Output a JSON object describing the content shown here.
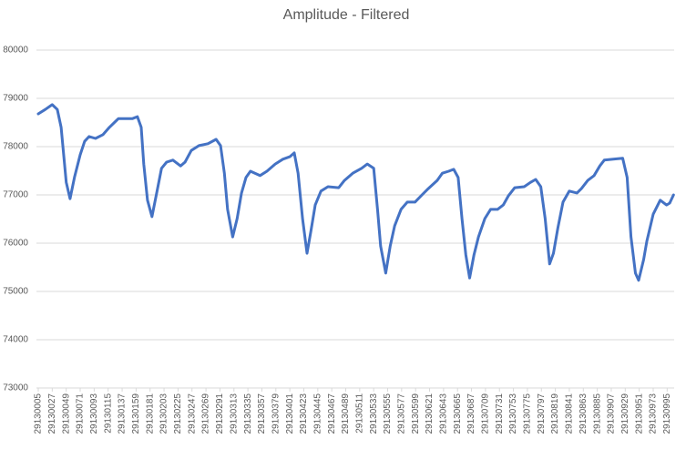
{
  "chart_data": {
    "type": "line",
    "title": "Amplitude - Filtered",
    "x": [
      29130005,
      29130016,
      29130027,
      29130035,
      29130041,
      29130045,
      29130049,
      29130055,
      29130062,
      29130071,
      29130078,
      29130085,
      29130095,
      29130107,
      29130117,
      29130131,
      29130141,
      29130153,
      29130161,
      29130167,
      29130171,
      29130177,
      29130184,
      29130192,
      29130199,
      29130207,
      29130217,
      29130229,
      29130236,
      29130246,
      29130258,
      29130272,
      29130285,
      29130292,
      29130298,
      29130303,
      29130311,
      29130318,
      29130325,
      29130332,
      29130339,
      29130354,
      29130365,
      29130378,
      29130390,
      29130401,
      29130408,
      29130414,
      29130421,
      29130428,
      29130434,
      29130441,
      29130450,
      29130461,
      29130478,
      29130487,
      29130500,
      29130514,
      29130523,
      29130533,
      29130539,
      29130544,
      29130552,
      29130559,
      29130566,
      29130576,
      29130586,
      29130598,
      29130609,
      29130619,
      29130633,
      29130641,
      29130651,
      29130659,
      29130666,
      29130672,
      29130678,
      29130684,
      29130691,
      29130698,
      29130708,
      29130717,
      29130728,
      29130737,
      29130745,
      29130755,
      29130770,
      29130780,
      29130788,
      29130796,
      29130803,
      29130810,
      29130816,
      29130823,
      29130831,
      29130841,
      29130853,
      29130860,
      29130870,
      29130880,
      29130889,
      29130896,
      29130910,
      29130925,
      29130932,
      29130938,
      29130945,
      29130950,
      29130958,
      29130963,
      29130973,
      29130984,
      29130994,
      29130999,
      29131005
    ],
    "values": [
      78680,
      78770,
      78870,
      78770,
      78400,
      77830,
      77260,
      76920,
      77360,
      77830,
      78110,
      78210,
      78170,
      78250,
      78400,
      78580,
      78580,
      78580,
      78620,
      78400,
      77640,
      76890,
      76550,
      77080,
      77550,
      77680,
      77720,
      77600,
      77680,
      77920,
      78020,
      78060,
      78150,
      78020,
      77450,
      76700,
      76130,
      76510,
      77040,
      77360,
      77490,
      77400,
      77490,
      77640,
      77740,
      77790,
      77870,
      77450,
      76510,
      75790,
      76230,
      76790,
      77080,
      77170,
      77150,
      77300,
      77450,
      77550,
      77640,
      77550,
      76700,
      75940,
      75380,
      75940,
      76360,
      76700,
      76850,
      76850,
      77000,
      77130,
      77300,
      77450,
      77490,
      77530,
      77360,
      76510,
      75760,
      75280,
      75760,
      76130,
      76510,
      76700,
      76700,
      76790,
      76980,
      77150,
      77170,
      77260,
      77320,
      77170,
      76510,
      75570,
      75790,
      76320,
      76850,
      77080,
      77040,
      77130,
      77300,
      77400,
      77600,
      77720,
      77740,
      77760,
      77360,
      76130,
      75380,
      75230,
      75660,
      76040,
      76600,
      76890,
      76790,
      76830,
      77000
    ],
    "color": "#4472c4",
    "xlim": [
      29130005,
      29131006
    ],
    "xticks": [
      29130005,
      29130027,
      29130049,
      29130071,
      29130093,
      29130115,
      29130137,
      29130159,
      29130181,
      29130203,
      29130225,
      29130247,
      29130269,
      29130291,
      29130313,
      29130335,
      29130357,
      29130379,
      29130401,
      29130423,
      29130445,
      29130467,
      29130489,
      29130511,
      29130533,
      29130555,
      29130577,
      29130599,
      29130621,
      29130643,
      29130665,
      29130687,
      29130709,
      29130731,
      29130753,
      29130775,
      29130797,
      29130819,
      29130841,
      29130863,
      29130885,
      29130907,
      29130929,
      29130951,
      29130973,
      29130995
    ],
    "ylim": [
      73000,
      80000
    ],
    "yticks": [
      73000,
      74000,
      75000,
      76000,
      77000,
      78000,
      79000,
      80000
    ],
    "grid": true
  }
}
